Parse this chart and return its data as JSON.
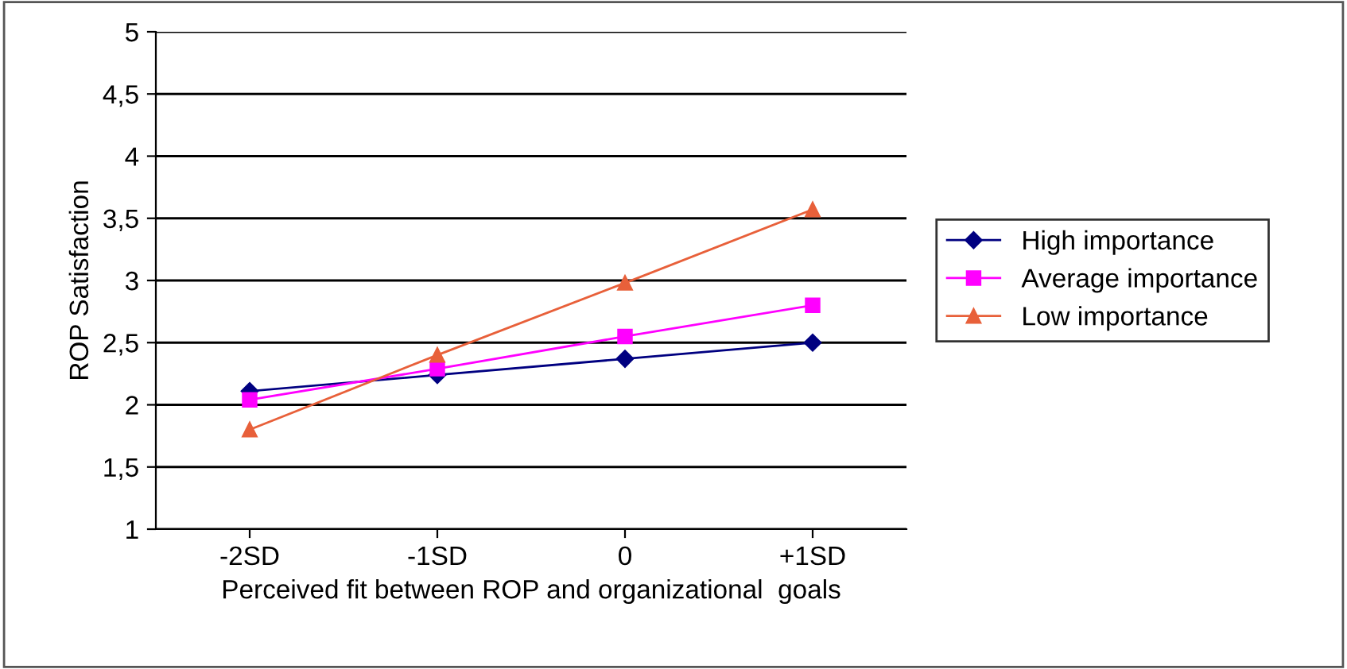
{
  "chart_data": {
    "type": "line",
    "xlabel": "Perceived fit between ROP and organizational  goals",
    "ylabel": "ROP Satisfaction",
    "categories": [
      "-2SD",
      "-1SD",
      "0",
      "+1SD"
    ],
    "series": [
      {
        "name": "High importance",
        "color": "#000080",
        "marker": "diamond",
        "values": [
          2.11,
          2.24,
          2.37,
          2.5
        ]
      },
      {
        "name": "Average importance",
        "color": "#ff00ff",
        "marker": "square",
        "values": [
          2.04,
          2.29,
          2.55,
          2.8
        ]
      },
      {
        "name": "Low importance",
        "color": "#e8603a",
        "marker": "triangle",
        "values": [
          1.8,
          2.4,
          2.98,
          3.57
        ]
      }
    ],
    "ylim": [
      1,
      5
    ],
    "yticks": [
      1,
      {
        "value": 1.5,
        "label": "1,5"
      },
      2,
      {
        "value": 2.5,
        "label": "2,5"
      },
      3,
      {
        "value": 3.5,
        "label": "3,5"
      },
      4,
      {
        "value": 4.5,
        "label": "4,5"
      },
      5
    ],
    "grid": "y",
    "legend": "right",
    "line_style": "solid"
  }
}
